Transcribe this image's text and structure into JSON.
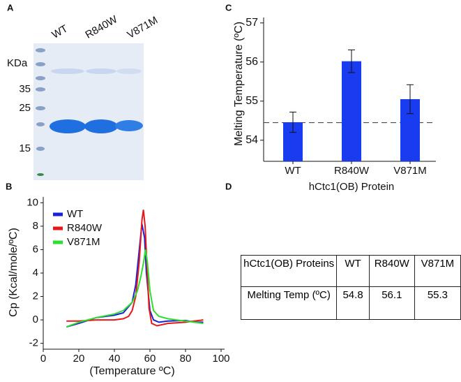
{
  "gel": {
    "panel": "A",
    "lanes": [
      "WT",
      "R840W",
      "V871M"
    ],
    "unit": "KDa",
    "markers": [
      "35",
      "25",
      "15"
    ]
  },
  "chart_data": [
    {
      "type": "bar",
      "panel": "C",
      "x_label": "hCtc1(OB) Protein",
      "y_label": "Melting Temperature (ºC)",
      "categories": [
        "WT",
        "R840W",
        "V871M"
      ],
      "values": [
        54.46,
        56.02,
        55.05
      ],
      "errors": [
        0.26,
        0.29,
        0.37
      ],
      "color": "#1a3cf0",
      "reference_line": 54.45,
      "ylim": [
        53.46,
        57.14
      ],
      "yticks": [
        54,
        55,
        56,
        57
      ]
    },
    {
      "type": "line",
      "panel": "B",
      "x_label": "(Temperature ºC)",
      "y_label": "Cp (Kcal/mole/ºC)",
      "xlim": [
        0,
        100
      ],
      "xticks": [
        0,
        20,
        40,
        60,
        80,
        100
      ],
      "ylim": [
        -2.5,
        10.5
      ],
      "yticks": [
        -2,
        0,
        2,
        4,
        6,
        8,
        10
      ],
      "legend": "upper left",
      "series": [
        {
          "name": "WT",
          "color": "#1a22d8",
          "x": [
            13,
            20,
            30,
            40,
            45,
            50,
            52,
            54,
            55.5,
            57,
            58,
            60,
            62,
            65,
            70,
            80,
            85,
            90
          ],
          "values": [
            -0.6,
            -0.3,
            0.2,
            0.4,
            0.6,
            1.5,
            3,
            6,
            8.2,
            7,
            4,
            0.8,
            0,
            -0.2,
            -0.1,
            -0.05,
            -0.2,
            -0.2
          ]
        },
        {
          "name": "R840W",
          "color": "#e81818",
          "x": [
            13,
            20,
            30,
            40,
            45,
            48,
            50,
            52,
            54,
            55.5,
            56.3,
            57.3,
            58.5,
            59.5,
            61,
            64,
            70,
            80,
            90
          ],
          "values": [
            -0.1,
            -0.1,
            0,
            0,
            0.1,
            0.3,
            0.8,
            2,
            5,
            8.5,
            9.4,
            8,
            4,
            1,
            -0.3,
            -0.5,
            -0.3,
            -0.2,
            0
          ]
        },
        {
          "name": "V871M",
          "color": "#2ee02e",
          "x": [
            13,
            20,
            30,
            40,
            45,
            50,
            53,
            55,
            56.5,
            57.5,
            58.5,
            60,
            62,
            65,
            70,
            80,
            90
          ],
          "values": [
            -0.6,
            -0.2,
            0.2,
            0.5,
            0.8,
            1.5,
            2.5,
            3.8,
            5,
            6,
            5,
            2.5,
            0.8,
            0.3,
            0.1,
            -0.1,
            -0.3
          ]
        }
      ]
    }
  ],
  "table": {
    "panel": "D",
    "rows": [
      [
        "hCtc1(OB) Proteins",
        "WT",
        "R840W",
        "V871M"
      ],
      [
        "Melting Temp (ºC)",
        "54.8",
        "56.1",
        "55.3"
      ]
    ]
  }
}
